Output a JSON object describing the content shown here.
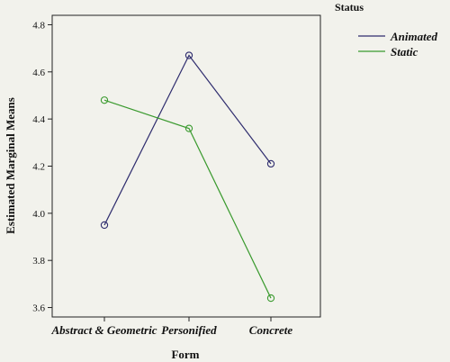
{
  "chart_data": {
    "type": "line",
    "categories": [
      "Abstract & Geometric",
      "Personified",
      "Concrete"
    ],
    "series": [
      {
        "name": "Animated",
        "values": [
          3.95,
          4.67,
          4.21
        ],
        "color": "#2f2d6e"
      },
      {
        "name": "Static",
        "values": [
          4.48,
          4.36,
          3.64
        ],
        "color": "#3a9a2e"
      }
    ],
    "xlabel": "Form",
    "ylabel": "Estimated Marginal Means",
    "ylim": [
      3.56,
      4.84
    ],
    "yticks": [
      "3.6",
      "3.8",
      "4.0",
      "4.2",
      "4.4",
      "4.6",
      "4.8"
    ],
    "legend_title": "Status",
    "legend_position": "top-right",
    "grid": false
  }
}
